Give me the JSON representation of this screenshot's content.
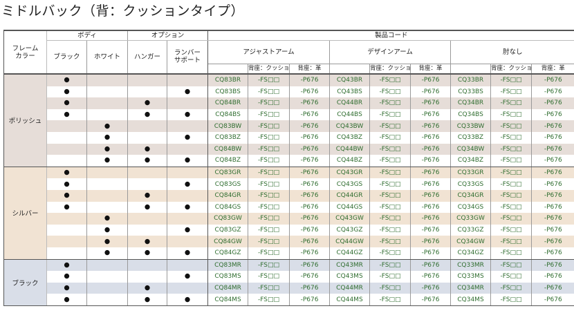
{
  "page": {
    "title": "ミドルバック（背：クッションタイプ）"
  },
  "header": {
    "frame_color": "フレーム\nカラー",
    "body_group": "ボディ",
    "body_black": "ブラック",
    "body_white": "ホワイト",
    "option_group": "オプション",
    "option_hanger": "ハンガー",
    "option_lumbar": "ランバー\nサポート",
    "product_code": "製品コード",
    "types": [
      "アジャストアーム",
      "デザインアーム",
      "肘なし"
    ],
    "material_cushion": "背座：クッション",
    "material_leather": "背座：革"
  },
  "mark": "●",
  "box_suffix": "-FS□□",
  "leather_suffix": "-P676",
  "groups": [
    {
      "frame": "ポリッシュ",
      "cls": "p",
      "rows": [
        {
          "b": true,
          "w": false,
          "h": false,
          "l": false,
          "codes": [
            "CQ83BR",
            "CQ43BR",
            "CQ33BR"
          ]
        },
        {
          "b": true,
          "w": false,
          "h": false,
          "l": true,
          "codes": [
            "CQ83BS",
            "CQ43BS",
            "CQ33BS"
          ]
        },
        {
          "b": true,
          "w": false,
          "h": true,
          "l": false,
          "codes": [
            "CQ84BR",
            "CQ44BR",
            "CQ34BR"
          ]
        },
        {
          "b": true,
          "w": false,
          "h": true,
          "l": true,
          "codes": [
            "CQ84BS",
            "CQ44BS",
            "CQ34BS"
          ]
        },
        {
          "b": false,
          "w": true,
          "h": false,
          "l": false,
          "codes": [
            "CQ83BW",
            "CQ43BW",
            "CQ33BW"
          ]
        },
        {
          "b": false,
          "w": true,
          "h": false,
          "l": true,
          "codes": [
            "CQ83BZ",
            "CQ43BZ",
            "CQ33BZ"
          ]
        },
        {
          "b": false,
          "w": true,
          "h": true,
          "l": false,
          "codes": [
            "CQ84BW",
            "CQ44BW",
            "CQ34BW"
          ]
        },
        {
          "b": false,
          "w": true,
          "h": true,
          "l": true,
          "codes": [
            "CQ84BZ",
            "CQ44BZ",
            "CQ34BZ"
          ]
        }
      ]
    },
    {
      "frame": "シルバー",
      "cls": "s",
      "rows": [
        {
          "b": true,
          "w": false,
          "h": false,
          "l": false,
          "codes": [
            "CQ83GR",
            "CQ43GR",
            "CQ33GR"
          ]
        },
        {
          "b": true,
          "w": false,
          "h": false,
          "l": true,
          "codes": [
            "CQ83GS",
            "CQ43GS",
            "CQ33GS"
          ]
        },
        {
          "b": true,
          "w": false,
          "h": true,
          "l": false,
          "codes": [
            "CQ84GR",
            "CQ44GR",
            "CQ34GR"
          ]
        },
        {
          "b": true,
          "w": false,
          "h": true,
          "l": true,
          "codes": [
            "CQ84GS",
            "CQ44GS",
            "CQ34GS"
          ]
        },
        {
          "b": false,
          "w": true,
          "h": false,
          "l": false,
          "codes": [
            "CQ83GW",
            "CQ43GW",
            "CQ33GW"
          ]
        },
        {
          "b": false,
          "w": true,
          "h": false,
          "l": true,
          "codes": [
            "CQ83GZ",
            "CQ43GZ",
            "CQ33GZ"
          ]
        },
        {
          "b": false,
          "w": true,
          "h": true,
          "l": false,
          "codes": [
            "CQ84GW",
            "CQ44GW",
            "CQ34GW"
          ]
        },
        {
          "b": false,
          "w": true,
          "h": true,
          "l": true,
          "codes": [
            "CQ84GZ",
            "CQ44GZ",
            "CQ34GZ"
          ]
        }
      ]
    },
    {
      "frame": "ブラック",
      "cls": "m",
      "rows": [
        {
          "b": true,
          "w": false,
          "h": false,
          "l": false,
          "codes": [
            "CQ83MR",
            "CQ43MR",
            "CQ33MR"
          ]
        },
        {
          "b": true,
          "w": false,
          "h": false,
          "l": true,
          "codes": [
            "CQ83MS",
            "CQ43MS",
            "CQ33MS"
          ]
        },
        {
          "b": true,
          "w": false,
          "h": true,
          "l": false,
          "codes": [
            "CQ84MR",
            "CQ44MR",
            "CQ34MR"
          ]
        },
        {
          "b": true,
          "w": false,
          "h": true,
          "l": true,
          "codes": [
            "CQ84MS",
            "CQ44MS",
            "CQ34MS"
          ]
        }
      ]
    }
  ]
}
